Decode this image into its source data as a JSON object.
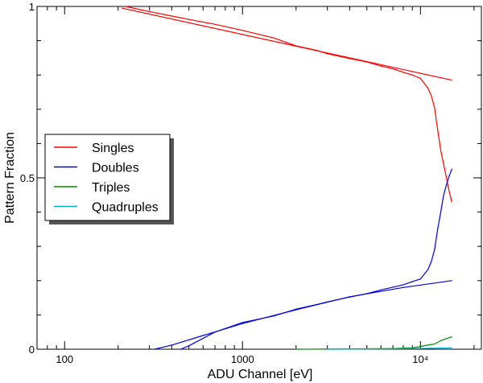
{
  "chart_data": {
    "type": "line",
    "title": "",
    "xlabel": "ADU Channel [eV]",
    "ylabel": "Pattern Fraction",
    "xscale": "log",
    "xlim": [
      70,
      22000
    ],
    "ylim": [
      0,
      1
    ],
    "x_ticks": [
      {
        "value": 100,
        "label": "100"
      },
      {
        "value": 1000,
        "label": "1000"
      },
      {
        "value": 10000,
        "label": "10⁴"
      }
    ],
    "y_ticks": [
      {
        "value": 0,
        "label": "0"
      },
      {
        "value": 0.5,
        "label": "0.5"
      },
      {
        "value": 1,
        "label": "1"
      }
    ],
    "legend_position": "center-left",
    "grid": false,
    "series": [
      {
        "name": "Singles",
        "color": "#ff0000",
        "x": [
          220,
          300,
          400,
          500,
          700,
          1000,
          1500,
          2000,
          2300,
          2600,
          3000,
          4000,
          5000,
          6000,
          7000,
          8000,
          9000,
          10000,
          11000,
          11500,
          12000,
          12500,
          13000,
          13500,
          14000,
          14500,
          15000
        ],
        "y": [
          1.0,
          0.985,
          0.972,
          0.962,
          0.948,
          0.93,
          0.908,
          0.885,
          0.878,
          0.872,
          0.862,
          0.848,
          0.838,
          0.826,
          0.818,
          0.808,
          0.8,
          0.79,
          0.762,
          0.74,
          0.705,
          0.64,
          0.58,
          0.54,
          0.5,
          0.46,
          0.43
        ]
      },
      {
        "name": "Singles model",
        "color": "#ff0000",
        "x": [
          210,
          15000
        ],
        "y": [
          0.995,
          0.785
        ]
      },
      {
        "name": "Doubles",
        "color": "#0000dd",
        "x": [
          450,
          500,
          700,
          1000,
          1500,
          2000,
          2300,
          2600,
          3000,
          4000,
          5000,
          6000,
          7000,
          8000,
          9000,
          10000,
          11000,
          11500,
          12000,
          12500,
          13000,
          13500,
          14000,
          14500,
          15000
        ],
        "y": [
          0.0,
          0.01,
          0.05,
          0.078,
          0.097,
          0.117,
          0.124,
          0.13,
          0.138,
          0.152,
          0.162,
          0.173,
          0.181,
          0.188,
          0.197,
          0.205,
          0.232,
          0.255,
          0.29,
          0.35,
          0.4,
          0.45,
          0.48,
          0.505,
          0.525
        ]
      },
      {
        "name": "Doubles model",
        "color": "#0000dd",
        "x": [
          320,
          400,
          600,
          1000,
          2000,
          4000,
          8000,
          15000
        ],
        "y": [
          0.0,
          0.012,
          0.04,
          0.075,
          0.115,
          0.153,
          0.18,
          0.2
        ]
      },
      {
        "name": "Triples",
        "color": "#008800",
        "x": [
          2000,
          4000,
          7000,
          9000,
          10000,
          11000,
          12000,
          13000,
          14000,
          15000
        ],
        "y": [
          0.0,
          0.001,
          0.002,
          0.004,
          0.008,
          0.012,
          0.015,
          0.025,
          0.031,
          0.036
        ]
      },
      {
        "name": "Quadruples",
        "color": "#00aacc",
        "x": [
          3000,
          6000,
          10000,
          15000
        ],
        "y": [
          0.0,
          0.001,
          0.002,
          0.004
        ]
      }
    ],
    "legend": [
      {
        "label": "Singles",
        "color": "#ff0000"
      },
      {
        "label": "Doubles",
        "color": "#0000dd"
      },
      {
        "label": "Triples",
        "color": "#008800"
      },
      {
        "label": "Quadruples",
        "color": "#00aacc"
      }
    ]
  }
}
